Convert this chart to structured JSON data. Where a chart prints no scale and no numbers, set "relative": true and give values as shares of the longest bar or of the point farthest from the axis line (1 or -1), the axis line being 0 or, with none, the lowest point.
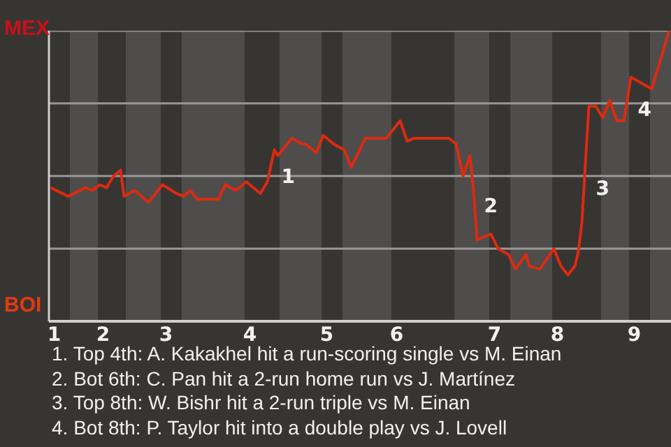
{
  "chart_data": {
    "type": "line",
    "relative": true,
    "categories": [
      null,
      "1",
      null,
      null,
      null,
      null,
      null,
      null,
      null,
      null,
      null,
      null,
      null,
      null,
      null,
      "2",
      null,
      null,
      null,
      null,
      null,
      null,
      null,
      null,
      null,
      null,
      null,
      null,
      null,
      null,
      null,
      null,
      null,
      "3",
      null,
      null,
      null,
      null,
      null,
      null,
      null,
      null,
      null,
      null,
      null,
      null,
      null,
      null,
      null,
      null,
      null,
      null,
      null,
      null,
      null,
      null,
      null,
      "4",
      null,
      null,
      null,
      null,
      null,
      null,
      null,
      null,
      null,
      null,
      null,
      null,
      null,
      null,
      null,
      null,
      null,
      null,
      null,
      null,
      null,
      "5",
      null,
      null,
      null,
      null,
      null,
      null,
      null,
      null,
      null,
      null,
      null,
      null,
      null,
      null,
      null,
      null,
      null,
      null,
      null,
      "6",
      null,
      null,
      null,
      null,
      null,
      null,
      null,
      null,
      null,
      null,
      null,
      null,
      null,
      null,
      null,
      null,
      null,
      null,
      null,
      null,
      null,
      null,
      null,
      null,
      null,
      null,
      null,
      "7",
      null,
      null,
      null,
      null,
      null,
      null,
      null,
      null,
      null,
      null,
      null,
      null,
      null,
      null,
      null,
      null,
      null,
      "8",
      null,
      null,
      null,
      null,
      null,
      null,
      null,
      null,
      null,
      null,
      null,
      null,
      null,
      null,
      null,
      null,
      null,
      null,
      null,
      null,
      null,
      "9",
      null,
      null,
      null,
      null,
      null,
      null,
      null,
      null,
      null,
      null
    ],
    "series": [
      {
        "color": "#dd2a10",
        "values": [
          0.46,
          null,
          null,
          null,
          null,
          0.43,
          null,
          null,
          null,
          null,
          0.46,
          null,
          0.45,
          null,
          0.47,
          null,
          0.46,
          null,
          0.5,
          null,
          0.52,
          0.43,
          null,
          null,
          0.45,
          null,
          null,
          null,
          0.41,
          null,
          null,
          null,
          0.47,
          null,
          null,
          null,
          0.44,
          null,
          0.43,
          null,
          0.45,
          null,
          0.42,
          null,
          null,
          null,
          null,
          null,
          0.42,
          null,
          0.47,
          null,
          null,
          0.45,
          null,
          null,
          0.48,
          null,
          null,
          null,
          0.44,
          null,
          0.48,
          null,
          0.59,
          0.57,
          null,
          null,
          null,
          0.63,
          null,
          null,
          0.61,
          0.61,
          null,
          null,
          0.58,
          null,
          0.64,
          null,
          null,
          0.61,
          null,
          null,
          0.59,
          null,
          0.53,
          null,
          null,
          null,
          0.63,
          null,
          null,
          null,
          null,
          null,
          0.63,
          null,
          null,
          null,
          0.69,
          null,
          0.62,
          null,
          0.63,
          null,
          null,
          null,
          null,
          null,
          null,
          null,
          null,
          null,
          0.63,
          null,
          0.61,
          null,
          0.5,
          null,
          0.57,
          0.45,
          0.28,
          null,
          null,
          null,
          0.3,
          null,
          0.25,
          null,
          null,
          0.23,
          null,
          0.18,
          null,
          null,
          0.23,
          0.19,
          null,
          null,
          0.18,
          null,
          null,
          null,
          0.25,
          null,
          0.19,
          null,
          0.16,
          null,
          0.19,
          0.24,
          0.34,
          null,
          0.74,
          null,
          0.74,
          null,
          0.7,
          null,
          0.76,
          null,
          0.69,
          null,
          0.69,
          null,
          0.84,
          null,
          null,
          null,
          null,
          null,
          0.8,
          null,
          null,
          null,
          null,
          1.0
        ]
      }
    ],
    "grid": "y",
    "annotations": [
      "MEX",
      "BOI",
      "1",
      "2",
      "3",
      "4",
      "1. Top 4th: A. Kakakhel hit a run-scoring single vs M. Einan",
      "2. Bot 6th: C. Pan hit a 2-run home run vs J. Martínez",
      "3. Top 8th: W. Bishr hit a 2-run triple vs M. Einan",
      "4. Bot 8th: P. Taylor hit into a double play vs J. Lovell"
    ]
  }
}
